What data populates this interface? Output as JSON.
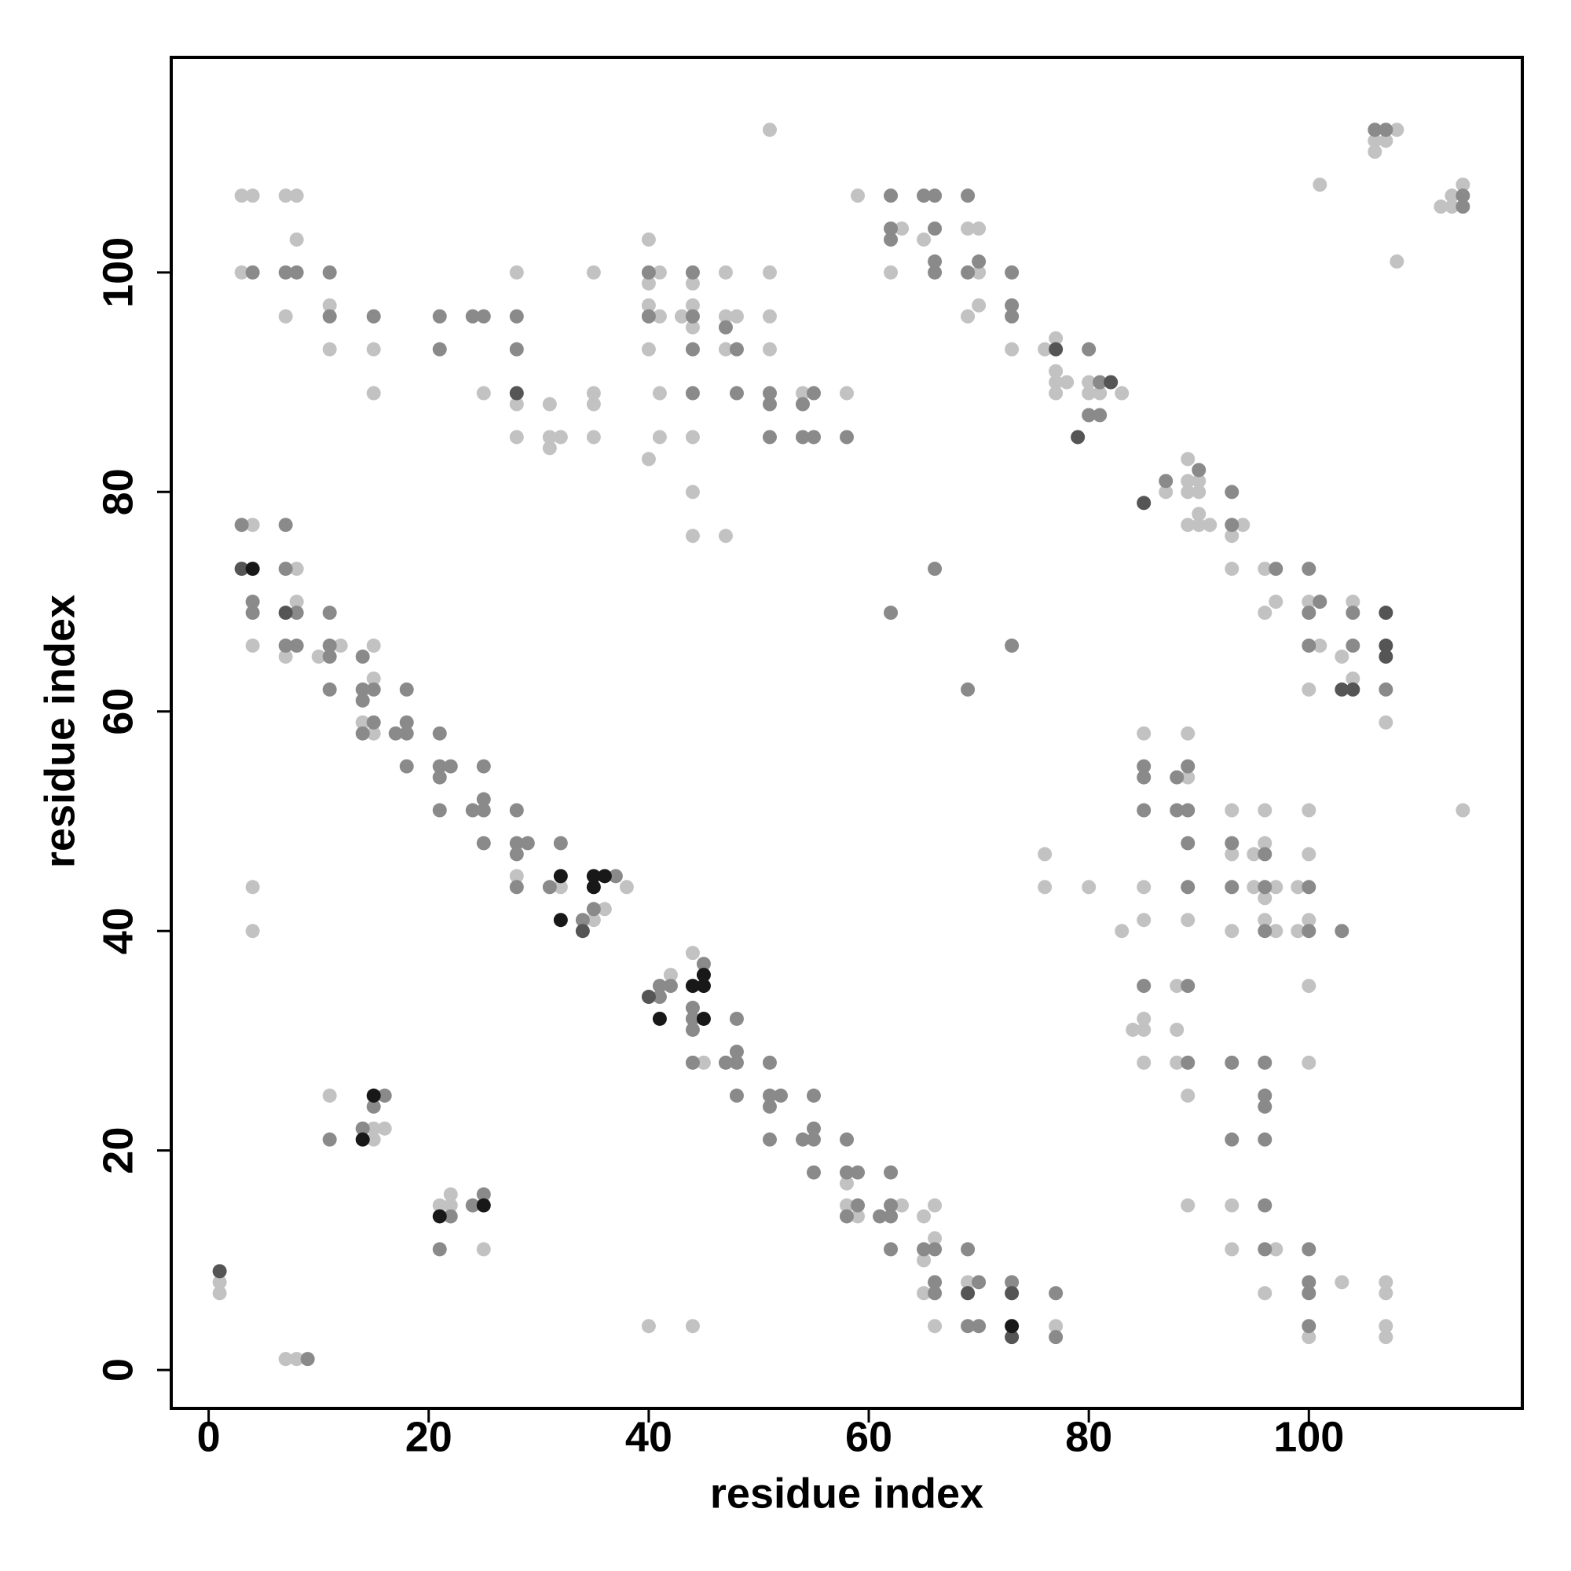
{
  "chart_data": {
    "type": "scatter",
    "xlabel": "residue index",
    "ylabel": "residue index",
    "xlim": [
      -3.4,
      119.4
    ],
    "ylim": [
      -3.5,
      119.6
    ],
    "xticks": [
      0,
      20,
      40,
      60,
      80,
      100
    ],
    "yticks": [
      0,
      20,
      40,
      60,
      80,
      100
    ],
    "series": [
      {
        "color": "#c2c2c2",
        "x": [
          3,
          4,
          7,
          8,
          8,
          3,
          11,
          7,
          11,
          15,
          15,
          25,
          28,
          28,
          28,
          31,
          31,
          31,
          32,
          35,
          35,
          35,
          35,
          40,
          40,
          40,
          40,
          40,
          41,
          41,
          41,
          41,
          43,
          44,
          44,
          44,
          44,
          44,
          44,
          47,
          47,
          47,
          48,
          47,
          51,
          51,
          51,
          51,
          54,
          58,
          59,
          63,
          62,
          65,
          69,
          70,
          70,
          70,
          69,
          73,
          76,
          77,
          77,
          77,
          77,
          78,
          80,
          80,
          81,
          83,
          87,
          89,
          89,
          89,
          90,
          90,
          90,
          89,
          90,
          91,
          93,
          94,
          93,
          96,
          97,
          96,
          100,
          101,
          100,
          103,
          104,
          104,
          107,
          108,
          106,
          107,
          106,
          101,
          108,
          112,
          113,
          113,
          114,
          114,
          4,
          4,
          8,
          8,
          7,
          10,
          12,
          15,
          15,
          14,
          15,
          28,
          32,
          35,
          36,
          38,
          4,
          4,
          42,
          44,
          45,
          58,
          58,
          59,
          63,
          65,
          66,
          66,
          65,
          65,
          66,
          69,
          77,
          76,
          76,
          80,
          1,
          1,
          7,
          8,
          11,
          15,
          16,
          15,
          21,
          22,
          22,
          25,
          40,
          44,
          85,
          85,
          85,
          83,
          85,
          84,
          85,
          85,
          89,
          89,
          89,
          88,
          88,
          88,
          89,
          89,
          93,
          93,
          93,
          95,
          95,
          96,
          96,
          96,
          96,
          97,
          97,
          100,
          100,
          99,
          100,
          99,
          100,
          100,
          93,
          93,
          97,
          96,
          100,
          103,
          107,
          107,
          107,
          107
        ],
        "y": [
          107,
          107,
          107,
          107,
          103,
          100,
          97,
          96,
          93,
          93,
          89,
          89,
          100,
          88,
          85,
          88,
          85,
          84,
          85,
          100,
          89,
          88,
          85,
          103,
          99,
          97,
          93,
          83,
          100,
          96,
          89,
          85,
          96,
          99,
          97,
          95,
          85,
          80,
          76,
          100,
          96,
          93,
          96,
          76,
          113,
          100,
          96,
          93,
          89,
          89,
          107,
          104,
          100,
          103,
          104,
          104,
          100,
          97,
          96,
          93,
          93,
          94,
          91,
          90,
          89,
          90,
          90,
          89,
          89,
          89,
          80,
          83,
          81,
          80,
          81,
          80,
          78,
          77,
          77,
          77,
          76,
          77,
          73,
          73,
          70,
          69,
          70,
          66,
          62,
          65,
          70,
          63,
          59,
          113,
          112,
          112,
          111,
          108,
          101,
          106,
          107,
          106,
          108,
          51,
          77,
          66,
          73,
          70,
          65,
          65,
          66,
          66,
          63,
          59,
          58,
          45,
          44,
          41,
          42,
          44,
          44,
          40,
          36,
          38,
          28,
          17,
          15,
          14,
          15,
          14,
          15,
          12,
          10,
          7,
          4,
          8,
          4,
          47,
          44,
          44,
          8,
          7,
          1,
          1,
          25,
          22,
          22,
          21,
          15,
          16,
          15,
          11,
          4,
          4,
          58,
          44,
          41,
          40,
          32,
          31,
          31,
          28,
          54,
          58,
          41,
          35,
          31,
          28,
          25,
          15,
          51,
          47,
          40,
          47,
          44,
          51,
          48,
          43,
          41,
          44,
          40,
          51,
          47,
          44,
          41,
          40,
          35,
          28,
          15,
          11,
          11,
          7,
          3,
          8,
          8,
          7,
          4,
          3
        ]
      },
      {
        "color": "#8a8a8a",
        "x": [
          4,
          7,
          8,
          11,
          11,
          15,
          21,
          21,
          24,
          25,
          28,
          28,
          40,
          40,
          44,
          44,
          44,
          44,
          47,
          48,
          48,
          51,
          51,
          51,
          54,
          54,
          55,
          55,
          58,
          62,
          62,
          62,
          65,
          66,
          66,
          66,
          66,
          69,
          69,
          70,
          73,
          73,
          73,
          80,
          81,
          80,
          81,
          87,
          90,
          93,
          93,
          97,
          100,
          101,
          100,
          100,
          104,
          104,
          107,
          106,
          107,
          114,
          114,
          3,
          4,
          4,
          7,
          7,
          8,
          7,
          8,
          11,
          11,
          11,
          11,
          14,
          14,
          15,
          14,
          15,
          14,
          17,
          18,
          18,
          18,
          18,
          21,
          21,
          21,
          22,
          21,
          24,
          25,
          25,
          25,
          25,
          28,
          28,
          29,
          28,
          28,
          31,
          32,
          34,
          35,
          37,
          41,
          41,
          42,
          45,
          44,
          44,
          44,
          44,
          47,
          48,
          48,
          48,
          48,
          51,
          51,
          52,
          51,
          51,
          54,
          55,
          55,
          55,
          55,
          58,
          58,
          59,
          59,
          58,
          61,
          62,
          62,
          62,
          62,
          65,
          66,
          66,
          66,
          69,
          70,
          69,
          70,
          73,
          77,
          77,
          62,
          66,
          73,
          69,
          9,
          11,
          14,
          16,
          15,
          22,
          21,
          24,
          25,
          85,
          85,
          85,
          85,
          88,
          88,
          89,
          89,
          89,
          89,
          89,
          89,
          93,
          93,
          96,
          96,
          96,
          100,
          100,
          103,
          93,
          96,
          96,
          96,
          93,
          96,
          96,
          96,
          100,
          100,
          100,
          100
        ],
        "y": [
          100,
          100,
          100,
          100,
          96,
          96,
          96,
          93,
          96,
          96,
          96,
          93,
          100,
          96,
          100,
          96,
          93,
          89,
          95,
          93,
          89,
          89,
          88,
          85,
          88,
          85,
          89,
          85,
          85,
          107,
          104,
          103,
          107,
          107,
          104,
          101,
          100,
          107,
          100,
          101,
          100,
          97,
          96,
          93,
          90,
          87,
          87,
          81,
          82,
          80,
          77,
          73,
          73,
          70,
          69,
          66,
          69,
          66,
          62,
          113,
          113,
          107,
          106,
          77,
          70,
          69,
          77,
          73,
          69,
          66,
          66,
          69,
          66,
          65,
          62,
          65,
          62,
          62,
          61,
          59,
          58,
          58,
          59,
          58,
          62,
          55,
          58,
          55,
          54,
          55,
          51,
          51,
          55,
          52,
          51,
          48,
          51,
          48,
          48,
          47,
          44,
          44,
          48,
          41,
          42,
          45,
          35,
          34,
          35,
          37,
          33,
          32,
          31,
          28,
          28,
          29,
          28,
          32,
          25,
          28,
          25,
          25,
          24,
          21,
          21,
          21,
          22,
          25,
          18,
          21,
          18,
          18,
          15,
          14,
          14,
          18,
          15,
          14,
          11,
          11,
          11,
          8,
          7,
          11,
          8,
          4,
          4,
          8,
          7,
          3,
          69,
          73,
          66,
          62,
          1,
          21,
          22,
          25,
          24,
          14,
          11,
          15,
          16,
          55,
          54,
          51,
          35,
          54,
          51,
          51,
          55,
          48,
          44,
          35,
          28,
          48,
          44,
          47,
          44,
          40,
          44,
          40,
          40,
          28,
          28,
          25,
          24,
          21,
          21,
          15,
          11,
          11,
          8,
          7,
          4
        ]
      },
      {
        "color": "#555555",
        "x": [
          28,
          77,
          82,
          79,
          85,
          103,
          104,
          107,
          107,
          107,
          3,
          7,
          34,
          40,
          69,
          73,
          73,
          1
        ],
        "y": [
          89,
          93,
          90,
          85,
          79,
          62,
          62,
          69,
          66,
          65,
          73,
          69,
          40,
          34,
          7,
          7,
          3,
          9
        ]
      },
      {
        "color": "#181818",
        "x": [
          4,
          32,
          32,
          35,
          36,
          35,
          41,
          44,
          45,
          45,
          45,
          73,
          14,
          15,
          21,
          25
        ],
        "y": [
          73,
          45,
          41,
          45,
          45,
          44,
          32,
          35,
          36,
          35,
          32,
          4,
          21,
          25,
          14,
          15
        ]
      }
    ]
  }
}
